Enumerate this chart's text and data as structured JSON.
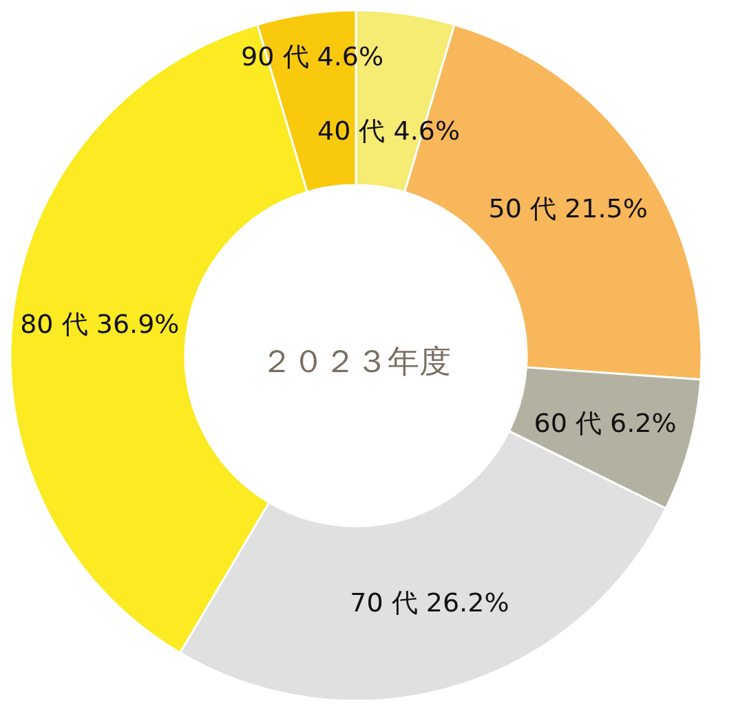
{
  "chart_data": {
    "type": "donut",
    "title": "２０２３年度",
    "categories": [
      "40 代",
      "50 代",
      "60 代",
      "70 代",
      "80 代",
      "90 代"
    ],
    "values": [
      4.6,
      21.5,
      6.2,
      26.2,
      36.9,
      4.6
    ],
    "value_labels": [
      "4.6%",
      "21.5%",
      "6.2%",
      "26.2%",
      "36.9%",
      "4.6%"
    ],
    "colors": [
      "#f6eb73",
      "#f8b75a",
      "#b3b1a2",
      "#e0e0e0",
      "#fcea22",
      "#f9c90e"
    ]
  }
}
